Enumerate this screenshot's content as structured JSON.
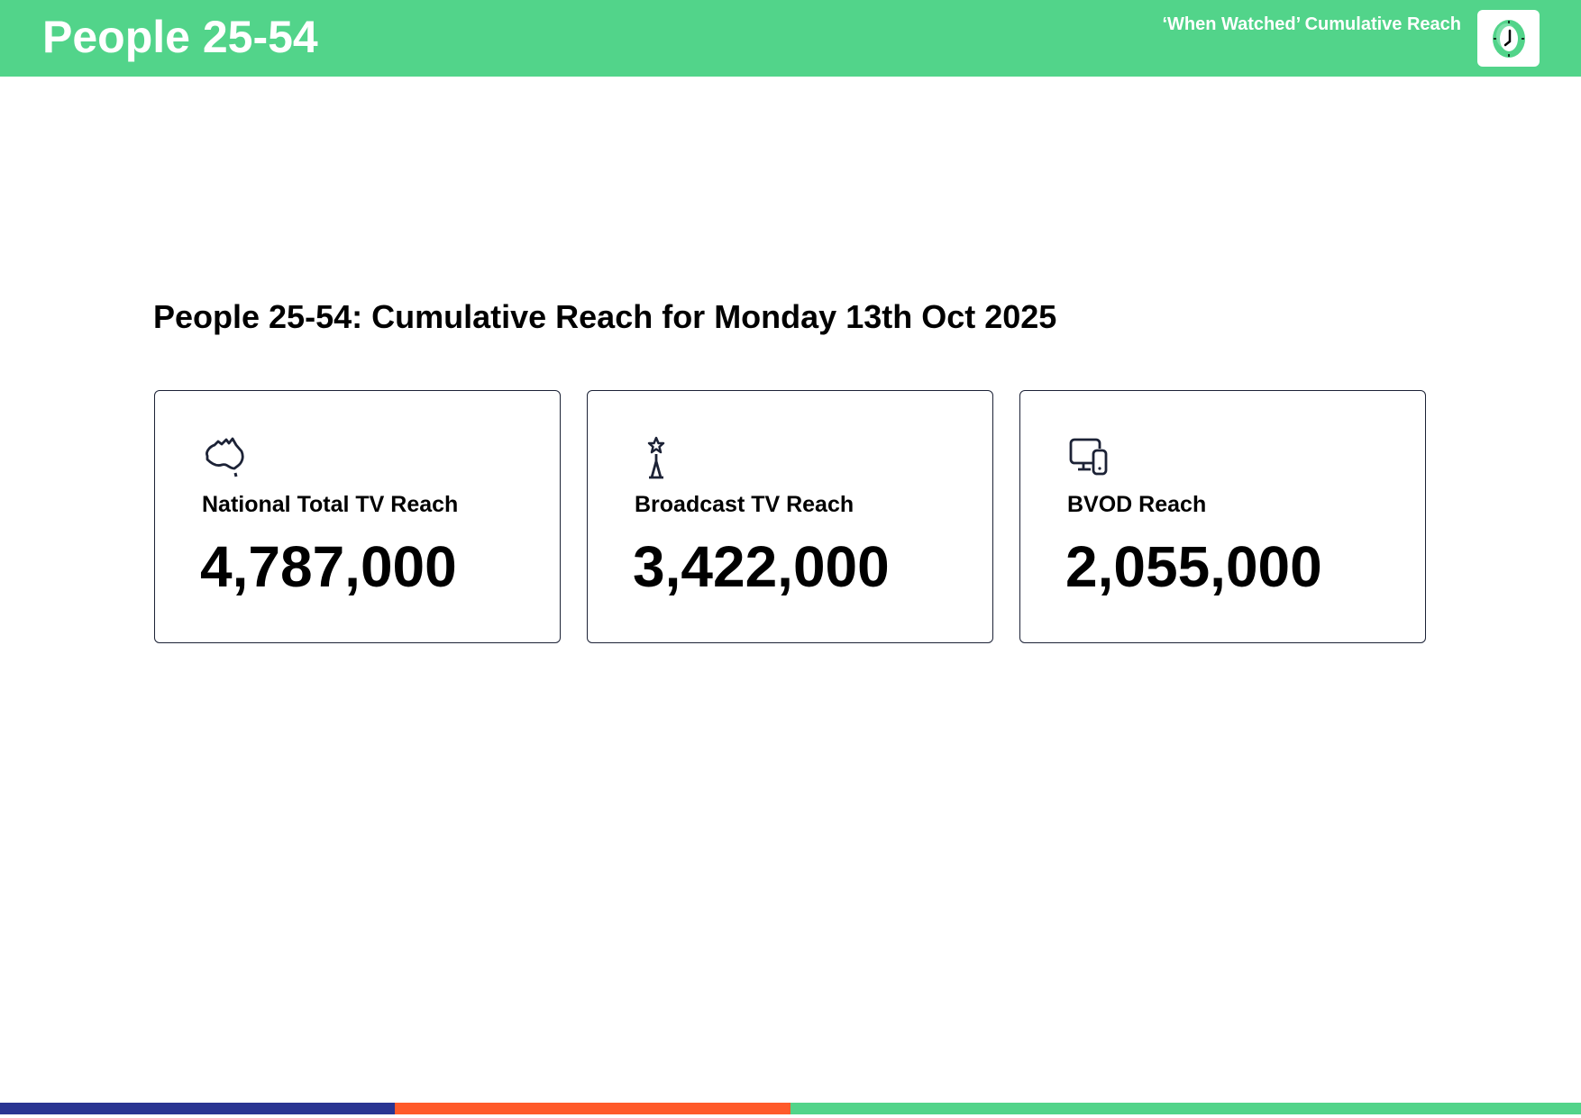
{
  "header": {
    "title": "People 25-54",
    "subtitle": "‘When Watched’ Cumulative Reach",
    "icon": "clock-icon"
  },
  "main": {
    "title": "People 25-54: Cumulative Reach for Monday 13th Oct 2025",
    "cards": [
      {
        "label": "National Total TV Reach",
        "value": "4,787,000",
        "icon": "australia-map-icon"
      },
      {
        "label": "Broadcast TV Reach",
        "value": "3,422,000",
        "icon": "broadcast-tower-icon"
      },
      {
        "label": "BVOD Reach",
        "value": "2,055,000",
        "icon": "devices-icon"
      }
    ]
  },
  "footer": {
    "colors": [
      "#2a3592",
      "#ff5a2a",
      "#52d48a"
    ]
  },
  "colors": {
    "accent": "#52d48a",
    "ink": "#1c2236"
  }
}
